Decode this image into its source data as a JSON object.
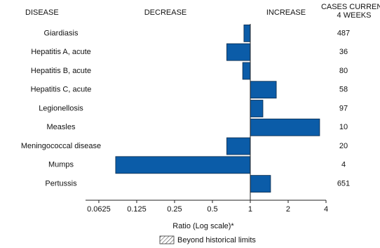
{
  "chart_data": {
    "type": "bar",
    "orientation": "horizontal",
    "log_scale": true,
    "headers": {
      "disease": "DISEASE",
      "decrease": "DECREASE",
      "increase": "INCREASE",
      "cases": [
        "CASES CURRENT",
        "4 WEEKS"
      ]
    },
    "categories": [
      "Giardiasis",
      "Hepatitis A, acute",
      "Hepatitis B, acute",
      "Hepatitis C, acute",
      "Legionellosis",
      "Measles",
      "Meningococcal disease",
      "Mumps",
      "Pertussis"
    ],
    "values": [
      0.89,
      0.65,
      0.87,
      1.61,
      1.26,
      3.56,
      0.65,
      0.085,
      1.45
    ],
    "cases": [
      487,
      36,
      80,
      58,
      97,
      10,
      20,
      4,
      651
    ],
    "color": "#0b5ca8",
    "xlim": [
      0.049,
      4
    ],
    "xticks": [
      0.0625,
      0.125,
      0.25,
      0.5,
      1,
      2,
      4
    ],
    "xlabel": "Ratio (Log scale)*",
    "legend": "Beyond historical limits"
  }
}
